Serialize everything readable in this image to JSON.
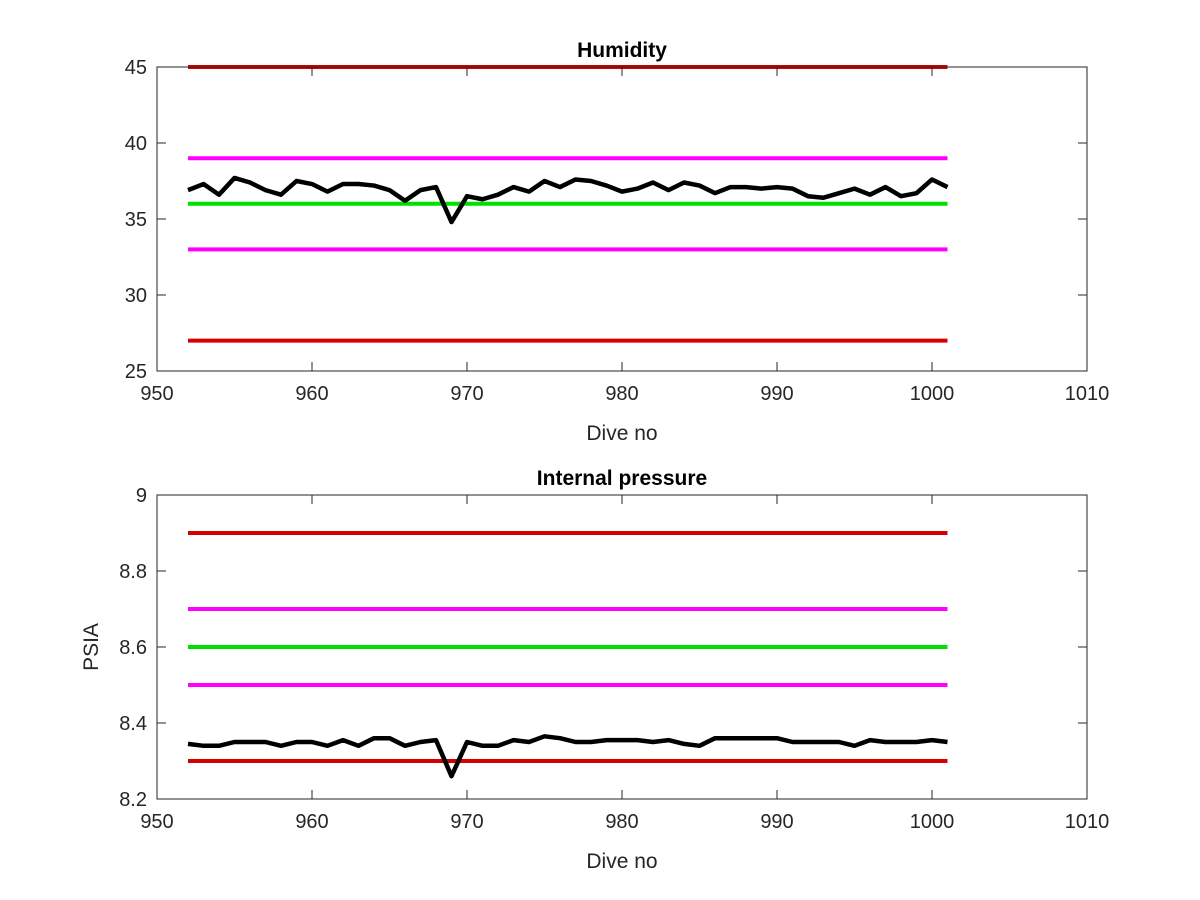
{
  "chart_data": [
    {
      "type": "line",
      "title": "Humidity",
      "xlabel": "Dive no",
      "ylabel": "",
      "xlim": [
        950,
        1010
      ],
      "ylim": [
        25,
        45
      ],
      "xticks": [
        950,
        960,
        970,
        980,
        990,
        1000,
        1010
      ],
      "yticks": [
        25,
        30,
        35,
        40,
        45
      ],
      "grid": false,
      "reference_lines": [
        {
          "y": 45,
          "x_range": [
            952,
            1001
          ],
          "color": "#d40000"
        },
        {
          "y": 39,
          "x_range": [
            952,
            1001
          ],
          "color": "#ff00ff"
        },
        {
          "y": 36,
          "x_range": [
            952,
            1001
          ],
          "color": "#00e000"
        },
        {
          "y": 33,
          "x_range": [
            952,
            1001
          ],
          "color": "#ff00ff"
        },
        {
          "y": 27,
          "x_range": [
            952,
            1001
          ],
          "color": "#d40000"
        }
      ],
      "series": [
        {
          "color": "#000000",
          "x": [
            952,
            953,
            954,
            955,
            956,
            957,
            958,
            959,
            960,
            961,
            962,
            963,
            964,
            965,
            966,
            967,
            968,
            969,
            970,
            971,
            972,
            973,
            974,
            975,
            976,
            977,
            978,
            979,
            980,
            981,
            982,
            983,
            984,
            985,
            986,
            987,
            988,
            989,
            990,
            991,
            992,
            993,
            994,
            995,
            996,
            997,
            998,
            999,
            1000,
            1001
          ],
          "y": [
            36.9,
            37.3,
            36.6,
            37.7,
            37.4,
            36.9,
            36.6,
            37.5,
            37.3,
            36.8,
            37.3,
            37.3,
            37.2,
            36.9,
            36.2,
            36.9,
            37.1,
            34.8,
            36.5,
            36.3,
            36.6,
            37.1,
            36.8,
            37.5,
            37.1,
            37.6,
            37.5,
            37.2,
            36.8,
            37.0,
            37.4,
            36.9,
            37.4,
            37.2,
            36.7,
            37.1,
            37.1,
            37.0,
            37.1,
            37.0,
            36.5,
            36.4,
            36.7,
            37.0,
            36.6,
            37.1,
            36.5,
            36.7,
            37.6,
            37.1
          ]
        }
      ]
    },
    {
      "type": "line",
      "title": "Internal pressure",
      "xlabel": "Dive no",
      "ylabel": "PSIA",
      "xlim": [
        950,
        1010
      ],
      "ylim": [
        8.2,
        9
      ],
      "xticks": [
        950,
        960,
        970,
        980,
        990,
        1000,
        1010
      ],
      "yticks": [
        8.2,
        8.4,
        8.6,
        8.8,
        9
      ],
      "ytick_labels": [
        "8.2",
        "8.4",
        "8.6",
        "8.8",
        "9"
      ],
      "grid": false,
      "reference_lines": [
        {
          "y": 8.9,
          "x_range": [
            952,
            1001
          ],
          "color": "#d40000"
        },
        {
          "y": 8.7,
          "x_range": [
            952,
            1001
          ],
          "color": "#ff00ff"
        },
        {
          "y": 8.6,
          "x_range": [
            952,
            1001
          ],
          "color": "#00e000"
        },
        {
          "y": 8.5,
          "x_range": [
            952,
            1001
          ],
          "color": "#ff00ff"
        },
        {
          "y": 8.3,
          "x_range": [
            952,
            1001
          ],
          "color": "#d40000"
        }
      ],
      "series": [
        {
          "color": "#000000",
          "x": [
            952,
            953,
            954,
            955,
            956,
            957,
            958,
            959,
            960,
            961,
            962,
            963,
            964,
            965,
            966,
            967,
            968,
            969,
            970,
            971,
            972,
            973,
            974,
            975,
            976,
            977,
            978,
            979,
            980,
            981,
            982,
            983,
            984,
            985,
            986,
            987,
            988,
            989,
            990,
            991,
            992,
            993,
            994,
            995,
            996,
            997,
            998,
            999,
            1000,
            1001
          ],
          "y": [
            8.345,
            8.34,
            8.34,
            8.35,
            8.35,
            8.35,
            8.34,
            8.35,
            8.35,
            8.34,
            8.355,
            8.34,
            8.36,
            8.36,
            8.34,
            8.35,
            8.355,
            8.26,
            8.35,
            8.34,
            8.34,
            8.355,
            8.35,
            8.365,
            8.36,
            8.35,
            8.35,
            8.355,
            8.355,
            8.355,
            8.35,
            8.355,
            8.345,
            8.34,
            8.36,
            8.36,
            8.36,
            8.36,
            8.36,
            8.35,
            8.35,
            8.35,
            8.35,
            8.34,
            8.355,
            8.35,
            8.35,
            8.35,
            8.355,
            8.35
          ]
        }
      ]
    }
  ]
}
